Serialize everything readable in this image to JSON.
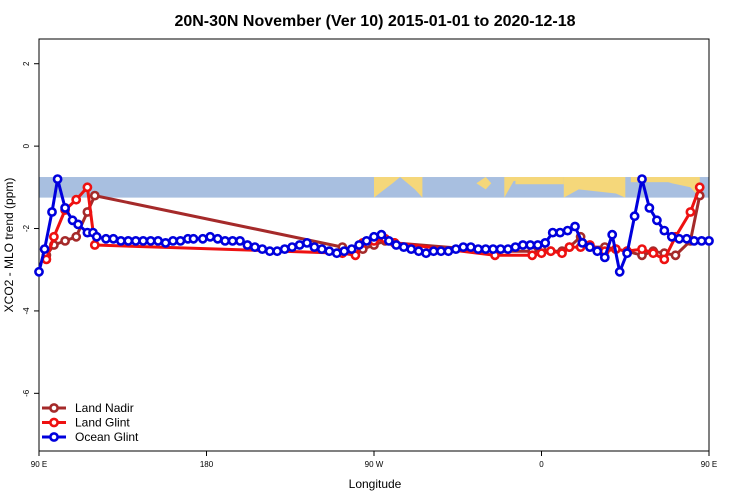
{
  "chart_data": {
    "type": "line",
    "title": "20N-30N November (Ver 10)   2015-01-01 to 2020-12-18",
    "xlabel": "Longitude",
    "ylabel": "XCO2 - MLO trend (ppm)",
    "xlim": [
      90,
      450
    ],
    "ylim": [
      -7.4,
      2.6
    ],
    "xticks": [
      {
        "value": 90,
        "label": "90 E"
      },
      {
        "value": 180,
        "label": "180"
      },
      {
        "value": 270,
        "label": "90 W"
      },
      {
        "value": 360,
        "label": "0"
      },
      {
        "value": 450,
        "label": "90 E"
      },
      {
        "value": 540,
        "label": "180"
      }
    ],
    "yticks": [
      {
        "value": 2,
        "label": "2"
      },
      {
        "value": 0,
        "label": "0"
      },
      {
        "value": -2,
        "label": "-2"
      },
      {
        "value": -4,
        "label": "-4"
      },
      {
        "value": -6,
        "label": "-6"
      }
    ],
    "grid": false,
    "legend_position": "bottom-left",
    "map_band_ylim": [
      -1.25,
      -0.75
    ],
    "colors": {
      "land_nadir": "#a52a2a",
      "land_glint": "#ee1111",
      "ocean_glint": "#0000dd",
      "ocean_band": "#a8bfe0",
      "land_band": "#f5d77a"
    },
    "series": [
      {
        "name": "Land Nadir",
        "color": "#a52a2a",
        "x": [
          94,
          98,
          104,
          110,
          116,
          120,
          253,
          260,
          264,
          270,
          276,
          281,
          336,
          355,
          360,
          365,
          371,
          375,
          381,
          386,
          394,
          400,
          406,
          414,
          420,
          426,
          432,
          440,
          445
        ],
        "y": [
          -2.65,
          -2.4,
          -2.3,
          -2.2,
          -1.6,
          -1.2,
          -2.45,
          -2.55,
          -2.5,
          -2.4,
          -2.3,
          -2.35,
          -2.55,
          -2.55,
          -2.5,
          -2.55,
          -2.55,
          -2.45,
          -2.2,
          -2.45,
          -2.45,
          -2.5,
          -2.55,
          -2.65,
          -2.55,
          -2.6,
          -2.65,
          -2.3,
          -1.2
        ]
      },
      {
        "name": "Land Glint",
        "color": "#ee1111",
        "x": [
          94,
          98,
          104,
          110,
          116,
          120,
          253,
          260,
          264,
          270,
          276,
          281,
          335,
          355,
          360,
          365,
          371,
          375,
          381,
          386,
          394,
          400,
          406,
          414,
          420,
          426,
          432,
          440,
          445
        ],
        "y": [
          -2.75,
          -2.2,
          -1.55,
          -1.3,
          -1.0,
          -2.4,
          -2.6,
          -2.65,
          -2.35,
          -2.3,
          -2.25,
          -2.35,
          -2.65,
          -2.65,
          -2.6,
          -2.55,
          -2.6,
          -2.45,
          -2.45,
          -2.4,
          -2.55,
          -2.5,
          -2.55,
          -2.5,
          -2.6,
          -2.75,
          -2.2,
          -1.6,
          -1.0
        ]
      },
      {
        "name": "Ocean Glint",
        "color": "#0000dd",
        "x": [
          90,
          93,
          97,
          100,
          104,
          108,
          111,
          116,
          119,
          121,
          126,
          130,
          134,
          138,
          142,
          146,
          150,
          154,
          158,
          162,
          166,
          170,
          173,
          178,
          182,
          186,
          190,
          194,
          198,
          202,
          206,
          210,
          214,
          218,
          222,
          226,
          230,
          234,
          238,
          242,
          246,
          250,
          254,
          258,
          262,
          266,
          270,
          274,
          278,
          282,
          286,
          290,
          294,
          298,
          302,
          306,
          310,
          314,
          318,
          322,
          326,
          330,
          334,
          338,
          342,
          346,
          350,
          354,
          358,
          362,
          366,
          370,
          374,
          378,
          382,
          386,
          390,
          394,
          398,
          402,
          406,
          410,
          414,
          418,
          422,
          426,
          430,
          434,
          438,
          442,
          446,
          450
        ],
        "y": [
          -3.05,
          -2.5,
          -1.6,
          -0.8,
          -1.5,
          -1.8,
          -1.9,
          -2.1,
          -2.1,
          -2.2,
          -2.25,
          -2.25,
          -2.3,
          -2.3,
          -2.3,
          -2.3,
          -2.3,
          -2.3,
          -2.35,
          -2.3,
          -2.3,
          -2.25,
          -2.25,
          -2.25,
          -2.2,
          -2.25,
          -2.3,
          -2.3,
          -2.3,
          -2.4,
          -2.45,
          -2.5,
          -2.55,
          -2.55,
          -2.5,
          -2.45,
          -2.4,
          -2.35,
          -2.45,
          -2.5,
          -2.55,
          -2.6,
          -2.55,
          -2.5,
          -2.4,
          -2.3,
          -2.2,
          -2.15,
          -2.3,
          -2.4,
          -2.45,
          -2.5,
          -2.55,
          -2.6,
          -2.55,
          -2.55,
          -2.55,
          -2.5,
          -2.45,
          -2.45,
          -2.5,
          -2.5,
          -2.5,
          -2.5,
          -2.5,
          -2.45,
          -2.4,
          -2.4,
          -2.4,
          -2.35,
          -2.1,
          -2.1,
          -2.05,
          -1.95,
          -2.35,
          -2.45,
          -2.55,
          -2.7,
          -2.15,
          -3.05,
          -2.6,
          -1.7,
          -0.8,
          -1.5,
          -1.8,
          -2.05,
          -2.2,
          -2.25,
          -2.25,
          -2.3,
          -2.3,
          -2.3
        ]
      }
    ]
  }
}
